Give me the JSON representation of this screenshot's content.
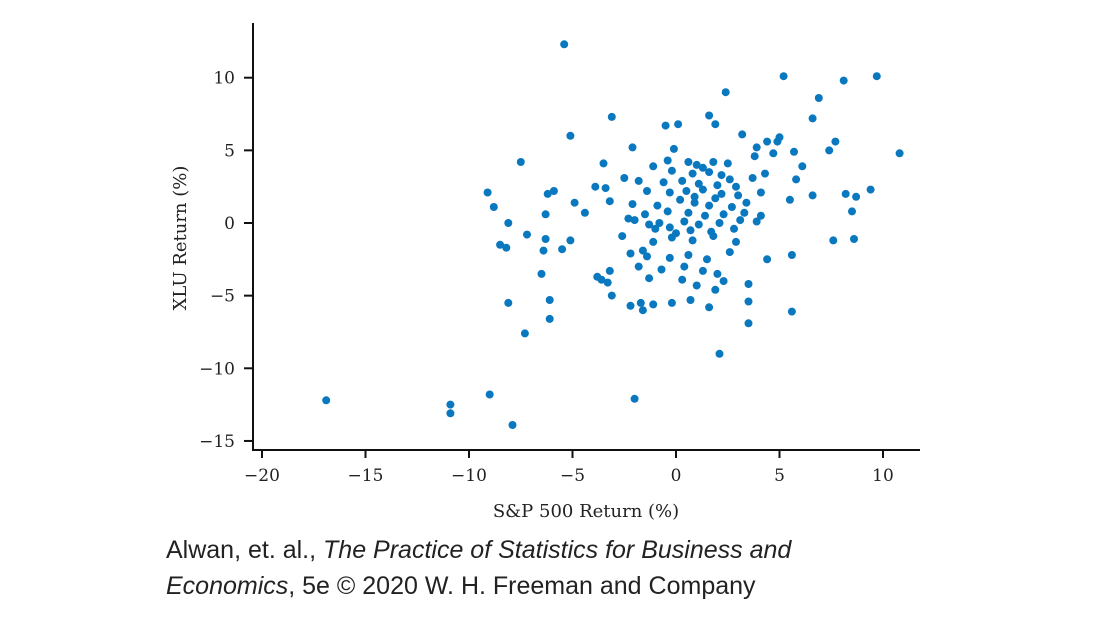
{
  "chart_data": {
    "type": "scatter",
    "xlabel": "S&P 500 Return (%)",
    "ylabel": "XLU Return (%)",
    "xlim": [
      -20,
      11.5
    ],
    "ylim": [
      -15.5,
      13.5
    ],
    "xticks": [
      -20,
      -15,
      -10,
      -5,
      0,
      5,
      10
    ],
    "yticks": [
      -15,
      -10,
      -5,
      0,
      5,
      10
    ],
    "xtick_labels": [
      "−20",
      "−15",
      "−10",
      "−5",
      "0",
      "5",
      "10"
    ],
    "ytick_labels": [
      "−15",
      "−10",
      "−5",
      "0",
      "5",
      "10"
    ],
    "grid": false,
    "marker_color": "#0a78bf",
    "points": [
      [
        -16.9,
        -12.2
      ],
      [
        -10.9,
        -12.5
      ],
      [
        -10.9,
        -13.1
      ],
      [
        -9.0,
        -11.8
      ],
      [
        -7.9,
        -13.9
      ],
      [
        -2.0,
        -12.1
      ],
      [
        2.1,
        -9.0
      ],
      [
        -5.4,
        12.3
      ],
      [
        9.7,
        10.1
      ],
      [
        5.2,
        10.1
      ],
      [
        8.1,
        9.8
      ],
      [
        2.4,
        9.0
      ],
      [
        6.9,
        8.6
      ],
      [
        6.6,
        7.2
      ],
      [
        1.6,
        7.4
      ],
      [
        -3.1,
        7.3
      ],
      [
        -0.5,
        6.7
      ],
      [
        0.1,
        6.8
      ],
      [
        1.9,
        6.8
      ],
      [
        -5.1,
        6.0
      ],
      [
        3.2,
        6.1
      ],
      [
        7.7,
        5.6
      ],
      [
        5.0,
        5.9
      ],
      [
        4.9,
        5.6
      ],
      [
        10.8,
        4.8
      ],
      [
        -2.1,
        5.2
      ],
      [
        -0.1,
        5.1
      ],
      [
        3.9,
        5.2
      ],
      [
        5.7,
        4.9
      ],
      [
        4.4,
        5.6
      ],
      [
        7.4,
        5.0
      ],
      [
        -7.5,
        4.2
      ],
      [
        -3.5,
        4.1
      ],
      [
        -0.4,
        4.3
      ],
      [
        0.6,
        4.2
      ],
      [
        1.0,
        4.0
      ],
      [
        1.3,
        3.8
      ],
      [
        1.8,
        4.2
      ],
      [
        2.5,
        4.1
      ],
      [
        6.1,
        3.9
      ],
      [
        -1.1,
        3.9
      ],
      [
        -0.2,
        3.6
      ],
      [
        0.8,
        3.4
      ],
      [
        1.6,
        3.5
      ],
      [
        2.2,
        3.3
      ],
      [
        3.7,
        3.1
      ],
      [
        4.3,
        3.4
      ],
      [
        5.8,
        3.0
      ],
      [
        -2.5,
        3.1
      ],
      [
        -1.8,
        2.9
      ],
      [
        -0.6,
        2.8
      ],
      [
        0.3,
        2.9
      ],
      [
        1.1,
        2.7
      ],
      [
        2.0,
        2.6
      ],
      [
        2.9,
        2.5
      ],
      [
        -9.1,
        2.1
      ],
      [
        -5.9,
        2.2
      ],
      [
        -6.2,
        2.0
      ],
      [
        -3.9,
        2.5
      ],
      [
        -3.4,
        2.4
      ],
      [
        -1.4,
        2.2
      ],
      [
        -0.3,
        2.1
      ],
      [
        0.5,
        2.2
      ],
      [
        1.3,
        2.3
      ],
      [
        2.2,
        2.0
      ],
      [
        3.0,
        1.9
      ],
      [
        4.1,
        2.1
      ],
      [
        6.6,
        1.9
      ],
      [
        8.2,
        2.0
      ],
      [
        8.7,
        1.8
      ],
      [
        9.4,
        2.3
      ],
      [
        5.5,
        1.6
      ],
      [
        -8.8,
        1.1
      ],
      [
        -4.9,
        1.4
      ],
      [
        -3.2,
        1.5
      ],
      [
        -2.1,
        1.3
      ],
      [
        -0.9,
        1.2
      ],
      [
        0.2,
        1.6
      ],
      [
        0.9,
        1.4
      ],
      [
        1.6,
        1.2
      ],
      [
        2.7,
        1.1
      ],
      [
        3.4,
        1.4
      ],
      [
        -4.4,
        0.7
      ],
      [
        -1.5,
        0.6
      ],
      [
        -0.4,
        0.8
      ],
      [
        0.6,
        0.7
      ],
      [
        1.4,
        0.5
      ],
      [
        2.3,
        0.6
      ],
      [
        3.3,
        0.7
      ],
      [
        4.1,
        0.5
      ],
      [
        8.5,
        0.8
      ],
      [
        -6.3,
        0.6
      ],
      [
        -8.1,
        0.0
      ],
      [
        -2.0,
        0.2
      ],
      [
        -0.8,
        0.0
      ],
      [
        0.4,
        0.1
      ],
      [
        1.1,
        -0.1
      ],
      [
        2.1,
        0.0
      ],
      [
        3.1,
        0.2
      ],
      [
        3.9,
        0.1
      ],
      [
        -1.3,
        -0.1
      ],
      [
        -0.3,
        -0.3
      ],
      [
        0.7,
        -0.5
      ],
      [
        1.7,
        -0.6
      ],
      [
        2.8,
        -0.4
      ],
      [
        -7.2,
        -0.8
      ],
      [
        -6.3,
        -1.1
      ],
      [
        -5.1,
        -1.2
      ],
      [
        -2.6,
        -0.9
      ],
      [
        -1.1,
        -1.3
      ],
      [
        -0.2,
        -1.0
      ],
      [
        0.8,
        -1.2
      ],
      [
        1.8,
        -0.9
      ],
      [
        2.9,
        -1.3
      ],
      [
        7.6,
        -1.2
      ],
      [
        8.6,
        -1.1
      ],
      [
        -8.5,
        -1.5
      ],
      [
        -8.2,
        -1.7
      ],
      [
        -6.4,
        -1.9
      ],
      [
        -5.5,
        -1.8
      ],
      [
        -2.2,
        -2.1
      ],
      [
        -1.4,
        -2.3
      ],
      [
        -0.3,
        -2.4
      ],
      [
        0.6,
        -2.2
      ],
      [
        1.5,
        -2.5
      ],
      [
        2.6,
        -2.0
      ],
      [
        4.4,
        -2.5
      ],
      [
        5.6,
        -2.2
      ],
      [
        -6.5,
        -3.5
      ],
      [
        -3.8,
        -3.7
      ],
      [
        -3.2,
        -3.3
      ],
      [
        -1.8,
        -3.0
      ],
      [
        -0.7,
        -3.2
      ],
      [
        0.4,
        -3.0
      ],
      [
        1.3,
        -3.3
      ],
      [
        2.0,
        -3.5
      ],
      [
        -3.6,
        -3.9
      ],
      [
        -3.3,
        -4.1
      ],
      [
        -1.3,
        -3.8
      ],
      [
        0.3,
        -3.9
      ],
      [
        1.0,
        -4.3
      ],
      [
        1.9,
        -4.6
      ],
      [
        2.3,
        -4.0
      ],
      [
        3.5,
        -4.2
      ],
      [
        -3.1,
        -5.0
      ],
      [
        -2.2,
        -5.7
      ],
      [
        -1.7,
        -5.5
      ],
      [
        -1.6,
        -6.0
      ],
      [
        -1.1,
        -5.6
      ],
      [
        -0.2,
        -5.5
      ],
      [
        0.7,
        -5.3
      ],
      [
        1.6,
        -5.8
      ],
      [
        3.5,
        -5.4
      ],
      [
        5.6,
        -6.1
      ],
      [
        -8.1,
        -5.5
      ],
      [
        -6.1,
        -5.3
      ],
      [
        -6.1,
        -6.6
      ],
      [
        -7.3,
        -7.6
      ],
      [
        3.5,
        -6.9
      ],
      [
        -1.0,
        -0.4
      ],
      [
        0.0,
        -0.7
      ],
      [
        1.9,
        1.7
      ],
      [
        2.6,
        3.0
      ],
      [
        -1.6,
        -1.9
      ],
      [
        0.9,
        1.8
      ],
      [
        -2.3,
        0.3
      ],
      [
        3.8,
        4.6
      ],
      [
        4.7,
        4.8
      ]
    ]
  },
  "caption": {
    "line1_start": "Alwan, et. al., ",
    "line1_italic": "The Practice of Statistics for Business and",
    "line2_italic": "Economics",
    "line2_rest": ", 5e © 2020 W. H. Freeman and Company"
  }
}
